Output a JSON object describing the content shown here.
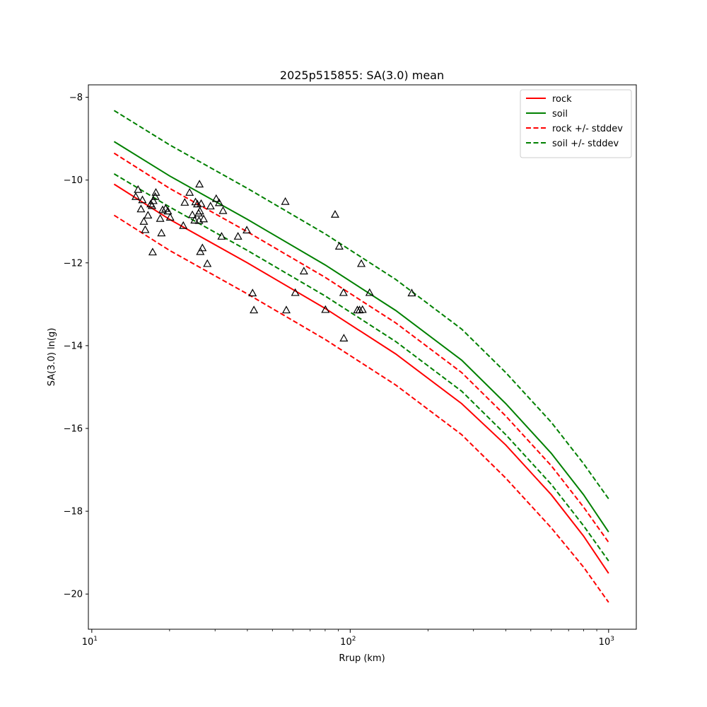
{
  "chart_data": {
    "type": "scatter",
    "title": "2025p515855: SA(3.0) mean",
    "xlabel": "Rrup (km)",
    "ylabel": "SA(3.0) ln(g)",
    "xscale": "log",
    "xlim": [
      9.7,
      1280
    ],
    "ylim": [
      -20.85,
      -7.7
    ],
    "x_ticks": [
      10,
      100,
      1000
    ],
    "x_tick_labels": [
      [
        "10",
        "1"
      ],
      [
        "10",
        "2"
      ],
      [
        "10",
        "3"
      ]
    ],
    "y_ticks": [
      -20,
      -18,
      -16,
      -14,
      -12,
      -10,
      -8
    ],
    "y_tick_labels": [
      "−20",
      "−18",
      "−16",
      "−14",
      "−12",
      "−10",
      "−8"
    ],
    "legend_position": "upper right",
    "colors": {
      "rock": "#ff0000",
      "soil": "#008000",
      "points": "#000000"
    },
    "series": [
      {
        "name": "rock",
        "style": "solid",
        "color": "#ff0000",
        "x": [
          12.2,
          20,
          40,
          80,
          150,
          270,
          400,
          600,
          800,
          1000
        ],
        "y": [
          -10.1,
          -10.95,
          -12.0,
          -13.1,
          -14.2,
          -15.4,
          -16.4,
          -17.6,
          -18.6,
          -19.5
        ]
      },
      {
        "name": "soil",
        "style": "solid",
        "color": "#008000",
        "x": [
          12.2,
          20,
          40,
          80,
          150,
          270,
          400,
          600,
          800,
          1000
        ],
        "y": [
          -9.07,
          -9.9,
          -10.95,
          -12.05,
          -13.15,
          -14.35,
          -15.4,
          -16.6,
          -17.6,
          -18.5
        ]
      },
      {
        "name": "rock +/- stddev",
        "style": "dashed",
        "color": "#ff0000",
        "x": [
          12.2,
          20,
          40,
          80,
          150,
          270,
          400,
          600,
          800,
          1000
        ],
        "y": [
          -9.35,
          -10.2,
          -11.25,
          -12.35,
          -13.45,
          -14.65,
          -15.7,
          -16.9,
          -17.9,
          -18.75
        ]
      },
      {
        "name": "",
        "style": "dashed",
        "color": "#ff0000",
        "x": [
          12.2,
          20,
          40,
          80,
          150,
          270,
          400,
          600,
          800,
          1000
        ],
        "y": [
          -10.85,
          -11.7,
          -12.75,
          -13.85,
          -14.95,
          -16.15,
          -17.2,
          -18.4,
          -19.35,
          -20.2
        ]
      },
      {
        "name": "soil +/- stddev",
        "style": "dashed",
        "color": "#008000",
        "x": [
          12.2,
          20,
          40,
          80,
          150,
          270,
          400,
          600,
          800,
          1000
        ],
        "y": [
          -8.32,
          -9.15,
          -10.2,
          -11.3,
          -12.4,
          -13.6,
          -14.65,
          -15.85,
          -16.85,
          -17.7
        ]
      },
      {
        "name": "",
        "style": "dashed",
        "color": "#008000",
        "x": [
          12.2,
          20,
          40,
          80,
          150,
          270,
          400,
          600,
          800,
          1000
        ],
        "y": [
          -9.85,
          -10.65,
          -11.7,
          -12.8,
          -13.9,
          -15.1,
          -16.15,
          -17.35,
          -18.35,
          -19.2
        ]
      }
    ],
    "points": [
      [
        14.8,
        -10.4
      ],
      [
        15.1,
        -10.23
      ],
      [
        15.5,
        -10.7
      ],
      [
        15.7,
        -10.48
      ],
      [
        15.9,
        -11.0
      ],
      [
        16.1,
        -11.2
      ],
      [
        16.5,
        -10.85
      ],
      [
        16.9,
        -10.58
      ],
      [
        17.1,
        -10.62
      ],
      [
        17.2,
        -11.74
      ],
      [
        17.3,
        -10.5
      ],
      [
        17.6,
        -10.4
      ],
      [
        17.7,
        -10.3
      ],
      [
        18.4,
        -10.93
      ],
      [
        18.6,
        -11.28
      ],
      [
        18.8,
        -10.72
      ],
      [
        19.3,
        -10.69
      ],
      [
        19.7,
        -10.75
      ],
      [
        20.1,
        -10.9
      ],
      [
        22.6,
        -11.1
      ],
      [
        22.9,
        -10.54
      ],
      [
        23.9,
        -10.3
      ],
      [
        24.5,
        -10.84
      ],
      [
        25.0,
        -10.97
      ],
      [
        25.2,
        -10.53
      ],
      [
        25.6,
        -10.58
      ],
      [
        25.9,
        -10.8
      ],
      [
        26.0,
        -10.98
      ],
      [
        26.1,
        -10.1
      ],
      [
        26.2,
        -10.75
      ],
      [
        26.3,
        -11.73
      ],
      [
        26.5,
        -10.57
      ],
      [
        26.8,
        -11.64
      ],
      [
        27.1,
        -10.94
      ],
      [
        28.0,
        -12.02
      ],
      [
        28.8,
        -10.63
      ],
      [
        30.3,
        -10.45
      ],
      [
        31.1,
        -10.55
      ],
      [
        31.8,
        -11.36
      ],
      [
        32.2,
        -10.74
      ],
      [
        36.8,
        -11.36
      ],
      [
        39.8,
        -11.21
      ],
      [
        41.9,
        -12.73
      ],
      [
        42.4,
        -13.14
      ],
      [
        56.1,
        -10.52
      ],
      [
        56.6,
        -13.14
      ],
      [
        61.3,
        -12.72
      ],
      [
        66.2,
        -12.2
      ],
      [
        80.2,
        -13.13
      ],
      [
        87.4,
        -10.83
      ],
      [
        90.7,
        -11.6
      ],
      [
        94.2,
        -12.72
      ],
      [
        94.5,
        -13.82
      ],
      [
        106.6,
        -13.14
      ],
      [
        108.7,
        -13.14
      ],
      [
        110.4,
        -12.02
      ],
      [
        111.6,
        -13.13
      ],
      [
        118.9,
        -12.72
      ],
      [
        173.1,
        -12.73
      ]
    ]
  }
}
